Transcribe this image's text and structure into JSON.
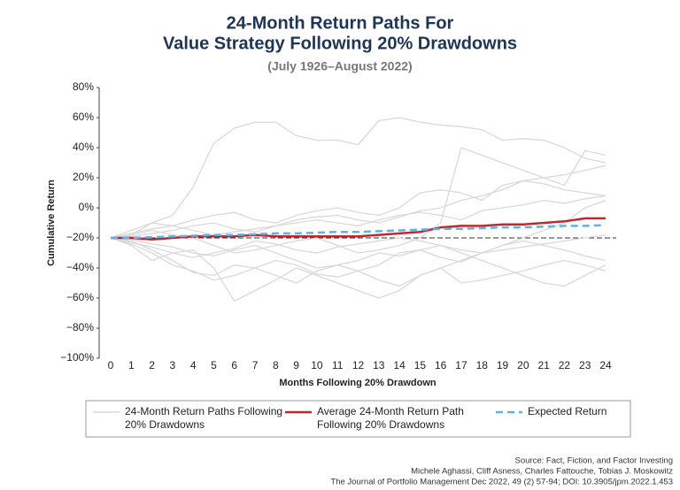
{
  "chart_data": {
    "type": "line",
    "title": [
      "24-Month Return Paths For",
      "Value Strategy Following 20% Drawdowns"
    ],
    "subtitle": "(July 1926–August 2022)",
    "y_label": "Cumulative Return",
    "x_label": "Months Following 20% Drawdown",
    "x": [
      0,
      1,
      2,
      3,
      4,
      5,
      6,
      7,
      8,
      9,
      10,
      11,
      12,
      13,
      14,
      15,
      16,
      17,
      18,
      19,
      20,
      21,
      22,
      23,
      24
    ],
    "xlim": [
      0,
      24
    ],
    "xticks": [
      0,
      1,
      2,
      3,
      4,
      5,
      6,
      7,
      8,
      9,
      10,
      11,
      12,
      13,
      14,
      15,
      16,
      17,
      18,
      19,
      20,
      21,
      22,
      23,
      24
    ],
    "ylim": [
      -100,
      80
    ],
    "yticks": [
      {
        "value": -100,
        "label": "−100%"
      },
      {
        "value": -80,
        "label": "−80%"
      },
      {
        "value": -60,
        "label": "−60%"
      },
      {
        "value": -40,
        "label": "−40%"
      },
      {
        "value": -20,
        "label": "−20%"
      },
      {
        "value": 0,
        "label": "0%"
      },
      {
        "value": 20,
        "label": "20%"
      },
      {
        "value": 40,
        "label": "40%"
      },
      {
        "value": 60,
        "label": "60%"
      },
      {
        "value": 80,
        "label": "80%"
      }
    ],
    "reference_line": -20,
    "series": [
      {
        "name": "24-Month Return Paths Following 20% Drawdowns",
        "color": "#d9d9d9",
        "paths": [
          [
            -20,
            -18,
            -10,
            -5,
            14,
            43,
            53,
            57,
            57,
            48,
            45,
            45,
            42,
            58,
            60,
            57,
            55,
            54,
            52,
            45,
            46,
            45,
            40,
            33,
            30
          ],
          [
            -20,
            -25,
            -35,
            -30,
            -28,
            -40,
            -62,
            -55,
            -48,
            -40,
            -45,
            -50,
            -55,
            -60,
            -55,
            -45,
            -40,
            -35,
            -30,
            -25,
            -20,
            -15,
            -10,
            0,
            5
          ],
          [
            -20,
            -15,
            -10,
            -12,
            -8,
            -5,
            -3,
            -8,
            -10,
            -5,
            -2,
            0,
            -3,
            -5,
            0,
            10,
            12,
            10,
            5,
            15,
            18,
            16,
            12,
            10,
            8
          ],
          [
            -20,
            -22,
            -28,
            -35,
            -43,
            -45,
            -38,
            -40,
            -45,
            -50,
            -42,
            -38,
            -42,
            -48,
            -52,
            -45,
            -40,
            -50,
            -48,
            -45,
            -42,
            -38,
            -35,
            -38,
            -42
          ],
          [
            -20,
            -18,
            -15,
            -18,
            -20,
            -25,
            -30,
            -28,
            -25,
            -22,
            -20,
            -25,
            -30,
            -28,
            -25,
            -20,
            -10,
            40,
            35,
            30,
            25,
            20,
            15,
            38,
            35
          ],
          [
            -20,
            -21,
            -24,
            -26,
            -30,
            -32,
            -28,
            -25,
            -30,
            -35,
            -40,
            -38,
            -35,
            -30,
            -32,
            -28,
            -25,
            -30,
            -35,
            -40,
            -45,
            -50,
            -52,
            -45,
            -38
          ],
          [
            -20,
            -19,
            -17,
            -15,
            -12,
            -10,
            -14,
            -16,
            -12,
            -8,
            -6,
            -5,
            -8,
            -10,
            -6,
            -2,
            0,
            5,
            8,
            12,
            18,
            20,
            22,
            25,
            28
          ],
          [
            -20,
            -23,
            -26,
            -30,
            -33,
            -30,
            -27,
            -22,
            -24,
            -28,
            -30,
            -26,
            -24,
            -22,
            -20,
            -22,
            -25,
            -28,
            -30,
            -28,
            -26,
            -24,
            -22,
            -20,
            -18
          ],
          [
            -20,
            -17,
            -14,
            -12,
            -15,
            -18,
            -16,
            -14,
            -12,
            -10,
            -8,
            -10,
            -12,
            -8,
            -5,
            -3,
            -5,
            -8,
            -2,
            0,
            2,
            5,
            3,
            6,
            8
          ],
          [
            -20,
            -24,
            -30,
            -38,
            -42,
            -48,
            -45,
            -40,
            -35,
            -38,
            -44,
            -46,
            -42,
            -38,
            -30,
            -28,
            -33,
            -36,
            -30,
            -25,
            -22,
            -25,
            -28,
            -32,
            -35
          ]
        ]
      },
      {
        "name": "Average 24-Month Return Path Following 20% Drawdowns",
        "color": "#c0282d",
        "values": [
          -20,
          -20,
          -21,
          -20,
          -19,
          -19,
          -19,
          -18,
          -19,
          -19,
          -19,
          -19,
          -19,
          -18,
          -17,
          -16,
          -13,
          -12,
          -12,
          -11,
          -11,
          -10,
          -9,
          -7,
          -7
        ]
      },
      {
        "name": "Expected Return",
        "color": "#5bb4e5",
        "dashed": true,
        "values": [
          -20,
          -20,
          -19.5,
          -19,
          -18.5,
          -18,
          -18,
          -17.5,
          -17,
          -17,
          -16.5,
          -16,
          -16,
          -15.5,
          -15,
          -14.5,
          -14,
          -14,
          -13.5,
          -13,
          -13,
          -12.5,
          -12,
          -12,
          -11.5
        ]
      }
    ],
    "source": [
      "Source: Fact, Fiction, and Factor Investing",
      "Michele Aghassi, Cliff Asness, Charles Fattouche, Tobias J. Moskowitz",
      "The Journal of Portfolio Management Dec 2022, 49 (2) 57-94; DOI: 10.3905/jpm.2022.1.453"
    ]
  }
}
